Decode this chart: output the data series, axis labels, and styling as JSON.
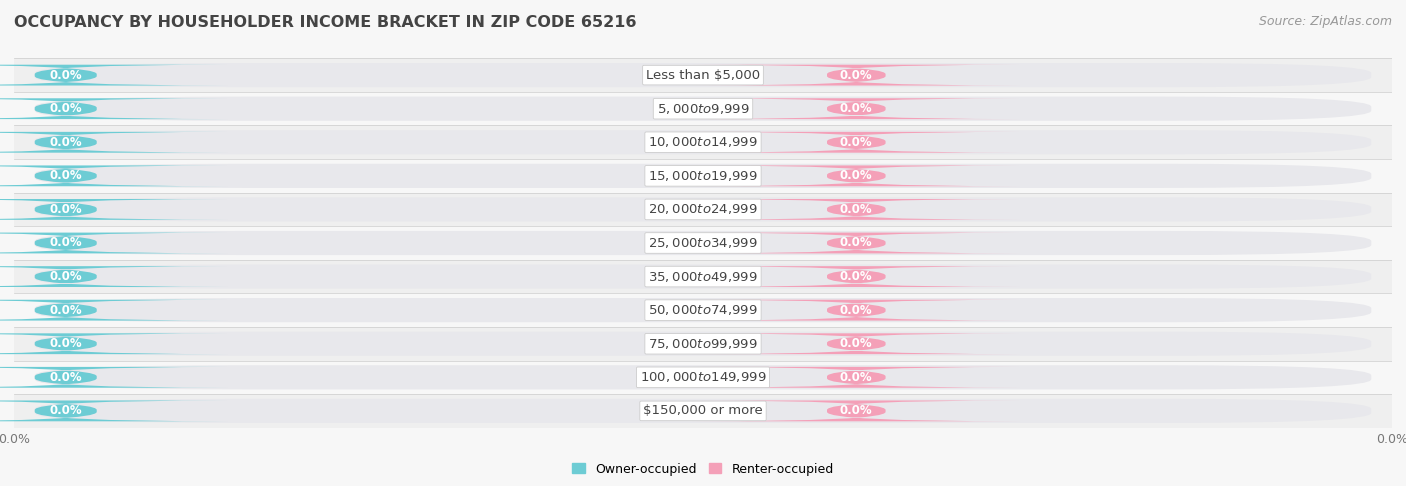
{
  "title": "OCCUPANCY BY HOUSEHOLDER INCOME BRACKET IN ZIP CODE 65216",
  "source": "Source: ZipAtlas.com",
  "categories": [
    "Less than $5,000",
    "$5,000 to $9,999",
    "$10,000 to $14,999",
    "$15,000 to $19,999",
    "$20,000 to $24,999",
    "$25,000 to $34,999",
    "$35,000 to $49,999",
    "$50,000 to $74,999",
    "$75,000 to $99,999",
    "$100,000 to $149,999",
    "$150,000 or more"
  ],
  "owner_values": [
    0.0,
    0.0,
    0.0,
    0.0,
    0.0,
    0.0,
    0.0,
    0.0,
    0.0,
    0.0,
    0.0
  ],
  "renter_values": [
    0.0,
    0.0,
    0.0,
    0.0,
    0.0,
    0.0,
    0.0,
    0.0,
    0.0,
    0.0,
    0.0
  ],
  "owner_color": "#6dccd4",
  "renter_color": "#f4a0b8",
  "bg_bar_color": "#e8e8ec",
  "owner_label": "Owner-occupied",
  "renter_label": "Renter-occupied",
  "background_color": "#f7f7f7",
  "row_bg_even": "#efefef",
  "row_bg_odd": "#f7f7f7",
  "title_fontsize": 11.5,
  "label_fontsize": 9,
  "tick_fontsize": 9,
  "source_fontsize": 9,
  "category_fontsize": 9.5,
  "value_label_fontsize": 8.5
}
